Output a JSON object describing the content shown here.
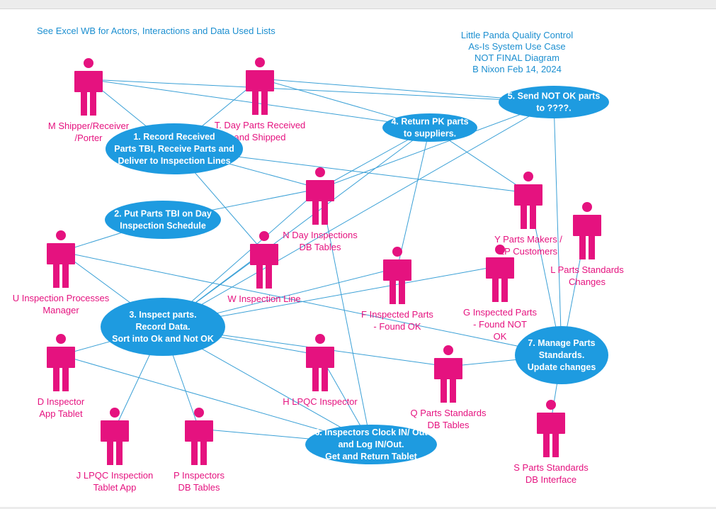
{
  "notes": {
    "top_left": "See Excel WB for Actors, Interactions and Data Used Lists",
    "title_lines": [
      "Little Panda Quality Control",
      "As-Is System Use Case",
      "NOT FINAL Diagram",
      "B Nixon Feb 14, 2024"
    ]
  },
  "colors": {
    "actor": "#e5127f",
    "use_case": "#1e9be0",
    "connector": "#3aa0d6",
    "note": "#1c8fd0"
  },
  "actors": [
    {
      "id": "M",
      "label_lines": [
        "M Shipper/Receiver",
        "/Porter"
      ]
    },
    {
      "id": "T",
      "label_lines": [
        "T. Day Parts Received",
        "and Shipped"
      ]
    },
    {
      "id": "N",
      "label_lines": [
        "N Day Inspections",
        "DB Tables"
      ]
    },
    {
      "id": "Y",
      "label_lines": [
        "Y Parts Makers /",
        "LP Customers"
      ]
    },
    {
      "id": "L",
      "label_lines": [
        "L Parts Standards",
        "Changes"
      ]
    },
    {
      "id": "U",
      "label_lines": [
        "U Inspection Processes",
        "Manager"
      ]
    },
    {
      "id": "W",
      "label_lines": [
        "W Inspection Line"
      ]
    },
    {
      "id": "F",
      "label_lines": [
        "F Inspected Parts",
        "- Found OK"
      ]
    },
    {
      "id": "G",
      "label_lines": [
        "G Inspected Parts",
        "- Found NOT",
        "OK"
      ]
    },
    {
      "id": "D",
      "label_lines": [
        "D Inspector",
        "App Tablet"
      ]
    },
    {
      "id": "H",
      "label_lines": [
        "H LPQC Inspector"
      ]
    },
    {
      "id": "Q",
      "label_lines": [
        "Q Parts Standards",
        "DB Tables"
      ]
    },
    {
      "id": "J",
      "label_lines": [
        "J LPQC Inspection",
        "Tablet App"
      ]
    },
    {
      "id": "P",
      "label_lines": [
        "P Inspectors",
        "DB Tables"
      ]
    },
    {
      "id": "S",
      "label_lines": [
        "S Parts Standards",
        "DB Interface"
      ]
    }
  ],
  "use_cases": [
    {
      "id": "1",
      "label_lines": [
        "1. Record Received",
        "Parts TBI, Receive Parts and",
        "Deliver to Inspection Lines"
      ]
    },
    {
      "id": "2",
      "label_lines": [
        "2. Put Parts TBI on Day",
        "Inspection Schedule"
      ]
    },
    {
      "id": "3",
      "label_lines": [
        "3. Inspect parts.",
        "Record Data.",
        "Sort into Ok and Not OK"
      ]
    },
    {
      "id": "4",
      "label_lines": [
        "4. Return PK parts",
        "to suppliers."
      ]
    },
    {
      "id": "5",
      "label_lines": [
        "5. Send NOT OK parts",
        "to ????."
      ]
    },
    {
      "id": "6",
      "label_lines": [
        "6. Inspectors Clock IN/ Out",
        "and Log IN/Out.",
        "Get and Return Tablet"
      ]
    },
    {
      "id": "7",
      "label_lines": [
        "7. Manage Parts",
        "Standards.",
        "Update changes"
      ]
    }
  ],
  "connections": [
    [
      "M",
      "1"
    ],
    [
      "M",
      "4"
    ],
    [
      "M",
      "5"
    ],
    [
      "T",
      "1"
    ],
    [
      "T",
      "5"
    ],
    [
      "T",
      "4"
    ],
    [
      "1",
      "N"
    ],
    [
      "1",
      "Y"
    ],
    [
      "1",
      "W"
    ],
    [
      "2",
      "N"
    ],
    [
      "2",
      "U"
    ],
    [
      "4",
      "N"
    ],
    [
      "4",
      "3"
    ],
    [
      "4",
      "F"
    ],
    [
      "4",
      "Y"
    ],
    [
      "5",
      "N"
    ],
    [
      "5",
      "3"
    ],
    [
      "5",
      "7"
    ],
    [
      "U",
      "3"
    ],
    [
      "U",
      "7"
    ],
    [
      "W",
      "3"
    ],
    [
      "3",
      "F"
    ],
    [
      "3",
      "G"
    ],
    [
      "3",
      "H"
    ],
    [
      "3",
      "Q"
    ],
    [
      "3",
      "D"
    ],
    [
      "3",
      "J"
    ],
    [
      "3",
      "P"
    ],
    [
      "3",
      "6"
    ],
    [
      "3",
      "N"
    ],
    [
      "D",
      "6"
    ],
    [
      "H",
      "6"
    ],
    [
      "N",
      "6"
    ],
    [
      "P",
      "6"
    ],
    [
      "Y",
      "7"
    ],
    [
      "L",
      "7"
    ],
    [
      "Q",
      "7"
    ],
    [
      "S",
      "7"
    ]
  ]
}
